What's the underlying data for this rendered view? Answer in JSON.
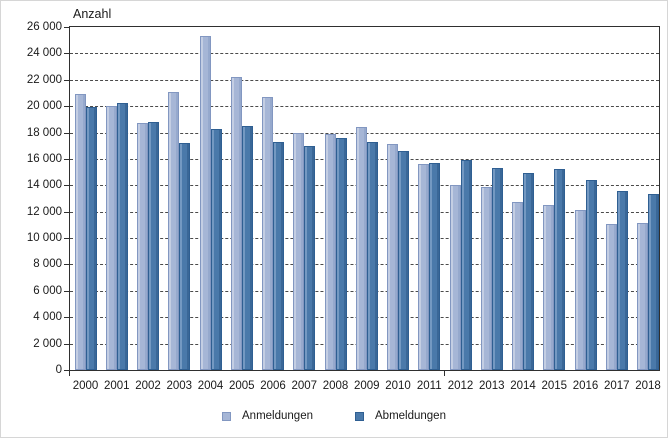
{
  "chart_data": {
    "type": "bar",
    "title": "Anzahl",
    "categories": [
      "2000",
      "2001",
      "2002",
      "2003",
      "2004",
      "2005",
      "2006",
      "2007",
      "2008",
      "2009",
      "2010",
      "2011",
      "2012",
      "2013",
      "2014",
      "2015",
      "2016",
      "2017",
      "2018"
    ],
    "series": [
      {
        "name": "Anmeldungen",
        "values": [
          20900,
          20000,
          18700,
          21100,
          25300,
          22200,
          20700,
          18000,
          17900,
          18400,
          17100,
          15600,
          14000,
          13900,
          12700,
          12500,
          12100,
          11100,
          11150
        ],
        "fill": "#a6b6d6",
        "edge_light": "#c4cee3",
        "edge_dark": "#96a9cd",
        "border": "#8297c1"
      },
      {
        "name": "Abmeldungen",
        "values": [
          19950,
          20250,
          18800,
          17200,
          18300,
          18500,
          17300,
          17000,
          17600,
          17250,
          16600,
          15700,
          15900,
          15350,
          14950,
          15200,
          14400,
          13600,
          13350
        ],
        "fill": "#4a79aa",
        "edge_light": "#7499c2",
        "edge_dark": "#3a6797",
        "border": "#2f5f92"
      }
    ],
    "ylim": [
      0,
      26000
    ],
    "ytick_step": 2000,
    "ytick_labels": [
      "0",
      "2 000",
      "4 000",
      "6 000",
      "8 000",
      "10 000",
      "12 000",
      "14 000",
      "16 000",
      "18 000",
      "20 000",
      "22 000",
      "24 000",
      "26 000"
    ],
    "grid": "dashed-horizontal",
    "legend_position": "bottom",
    "axis_color": "#2f2f2f"
  }
}
